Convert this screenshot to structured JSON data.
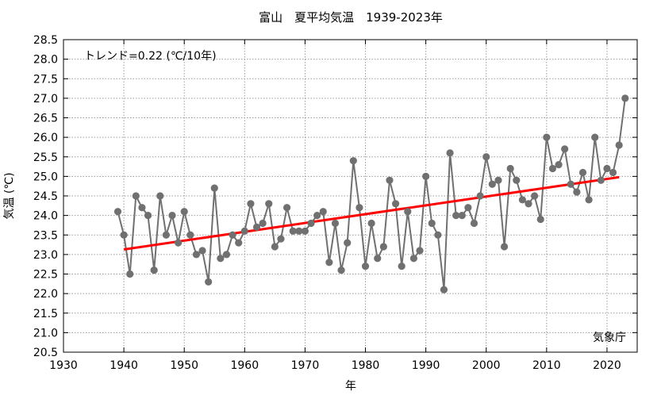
{
  "chart_data": {
    "type": "line",
    "title": "富山　夏平均気温　1939-2023年",
    "xlabel": "年",
    "ylabel": "気温 (℃)",
    "trend_label": "トレンド=0.22 (℃/10年)",
    "credit": "気象庁",
    "xlim": [
      1930,
      2025
    ],
    "ylim": [
      20.5,
      28.5
    ],
    "x_ticks": [
      1930,
      1940,
      1950,
      1960,
      1970,
      1980,
      1990,
      2000,
      2010,
      2020
    ],
    "y_ticks": [
      20.5,
      21.0,
      21.5,
      22.0,
      22.5,
      23.0,
      23.5,
      24.0,
      24.5,
      25.0,
      25.5,
      26.0,
      26.5,
      27.0,
      27.5,
      28.0,
      28.5
    ],
    "grid": true,
    "series": [
      {
        "color": "#707070",
        "x": [
          1939,
          1940,
          1941,
          1942,
          1943,
          1944,
          1945,
          1946,
          1947,
          1948,
          1949,
          1950,
          1951,
          1952,
          1953,
          1954,
          1955,
          1956,
          1957,
          1958,
          1959,
          1960,
          1961,
          1962,
          1963,
          1964,
          1965,
          1966,
          1967,
          1968,
          1969,
          1970,
          1971,
          1972,
          1973,
          1974,
          1975,
          1976,
          1977,
          1978,
          1979,
          1980,
          1981,
          1982,
          1983,
          1984,
          1985,
          1986,
          1987,
          1988,
          1989,
          1990,
          1991,
          1992,
          1993,
          1994,
          1995,
          1996,
          1997,
          1998,
          1999,
          2000,
          2001,
          2002,
          2003,
          2004,
          2005,
          2006,
          2007,
          2008,
          2009,
          2010,
          2011,
          2012,
          2013,
          2014,
          2015,
          2016,
          2017,
          2018,
          2019,
          2020,
          2021,
          2022,
          2023
        ],
        "values": [
          24.1,
          23.5,
          22.5,
          24.5,
          24.2,
          24.0,
          22.6,
          24.5,
          23.5,
          24.0,
          23.3,
          24.1,
          23.5,
          23.0,
          23.1,
          22.3,
          24.7,
          22.9,
          23.0,
          23.5,
          23.3,
          23.6,
          24.3,
          23.7,
          23.8,
          24.3,
          23.2,
          23.4,
          24.2,
          23.6,
          23.6,
          23.6,
          23.8,
          24.0,
          24.1,
          22.8,
          23.8,
          22.6,
          23.3,
          25.4,
          24.2,
          22.7,
          23.8,
          22.9,
          23.2,
          24.9,
          24.3,
          22.7,
          24.1,
          22.9,
          23.1,
          25.0,
          23.8,
          23.5,
          22.1,
          25.6,
          24.0,
          24.0,
          24.2,
          23.8,
          24.5,
          25.5,
          24.8,
          24.9,
          23.2,
          25.2,
          24.9,
          24.4,
          24.3,
          24.5,
          23.9,
          26.0,
          25.2,
          25.3,
          25.7,
          24.8,
          24.6,
          25.1,
          24.4,
          26.0,
          24.9,
          25.2,
          25.1,
          25.8,
          27.0
        ]
      },
      {
        "color": "#ff0000",
        "x": [
          1940,
          2022
        ],
        "values": [
          23.13,
          24.98
        ]
      }
    ]
  }
}
